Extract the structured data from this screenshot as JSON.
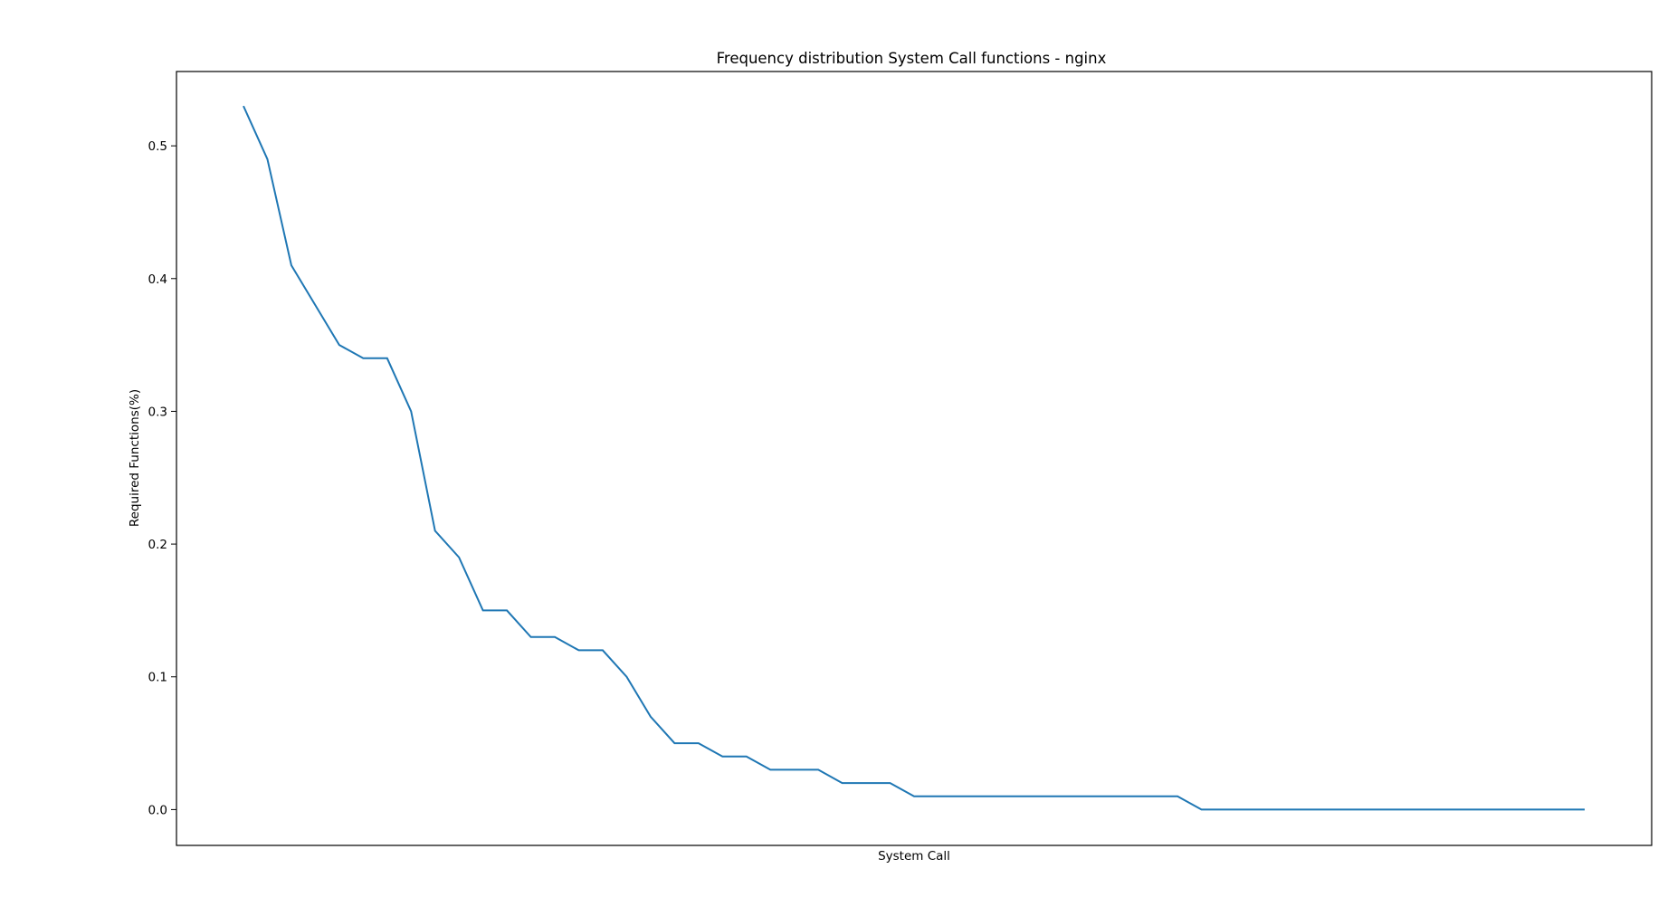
{
  "chart_data": {
    "type": "line",
    "title": "Frequency distribution System Call functions  - nginx",
    "xlabel": "System Call",
    "ylabel": "Required Functions(%)",
    "ylim": [
      -0.027,
      0.556
    ],
    "yticks": [
      "0.0",
      "0.1",
      "0.2",
      "0.3",
      "0.4",
      "0.5"
    ],
    "grid": false,
    "series": [
      {
        "color": "#1f77b4",
        "values": [
          0.53,
          0.49,
          0.41,
          0.38,
          0.35,
          0.34,
          0.34,
          0.3,
          0.21,
          0.19,
          0.15,
          0.15,
          0.13,
          0.13,
          0.12,
          0.12,
          0.1,
          0.07,
          0.05,
          0.05,
          0.04,
          0.04,
          0.03,
          0.03,
          0.03,
          0.02,
          0.02,
          0.02,
          0.01,
          0.01,
          0.01,
          0.01,
          0.01,
          0.01,
          0.01,
          0.01,
          0.01,
          0.01,
          0.01,
          0.01,
          0,
          0,
          0,
          0,
          0,
          0,
          0,
          0,
          0,
          0,
          0,
          0,
          0,
          0,
          0,
          0,
          0
        ]
      }
    ]
  }
}
